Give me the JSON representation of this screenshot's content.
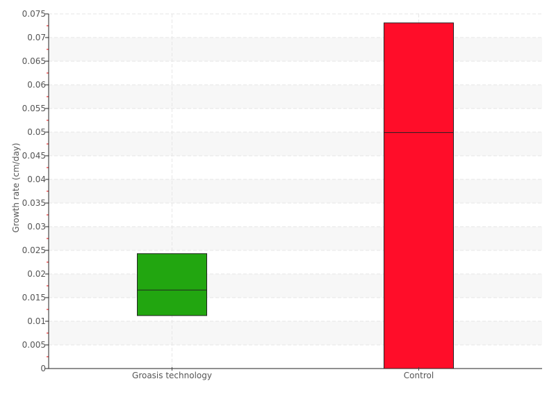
{
  "chart_data": {
    "type": "box",
    "title": "",
    "xlabel": "",
    "ylabel": "Growth rate (cm/day)",
    "ylim": [
      0,
      0.075
    ],
    "yticks": [
      "0",
      "0.005",
      "0.01",
      "0.015",
      "0.02",
      "0.025",
      "0.03",
      "0.035",
      "0.04",
      "0.045",
      "0.05",
      "0.055",
      "0.06",
      "0.065",
      "0.07",
      "0.075"
    ],
    "categories": [
      "Groasis technology",
      "Control"
    ],
    "boxes": [
      {
        "category": "Groasis technology",
        "low": 0.0112,
        "median": 0.0166,
        "high": 0.0243,
        "color": "#22a610"
      },
      {
        "category": "Control",
        "low": 0,
        "median": 0.0499,
        "high": 0.0731,
        "color": "#ff0d29"
      }
    ],
    "grid": true,
    "legend": "none"
  }
}
